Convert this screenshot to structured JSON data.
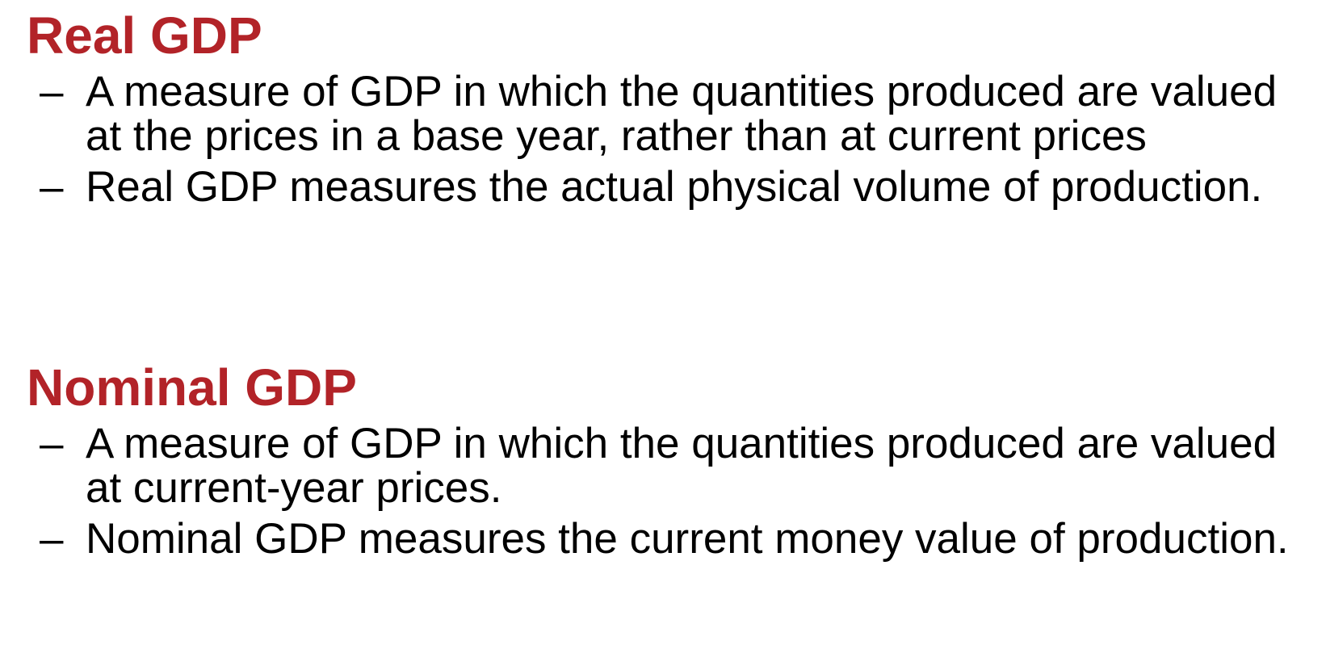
{
  "sections": [
    {
      "heading": "Real GDP",
      "bullets": [
        {
          "marker": "–",
          "text": "A measure of GDP in which the quantities produced are valued at the prices in a base year, rather than at current prices"
        },
        {
          "marker": "–",
          "text": "Real GDP measures the actual physical volume of production."
        }
      ]
    },
    {
      "heading": "Nominal GDP",
      "bullets": [
        {
          "marker": "–",
          "text": "A measure of GDP in which the quantities produced are valued at current-year prices."
        },
        {
          "marker": "–",
          "text": "Nominal GDP measures the current money value of production."
        }
      ]
    }
  ],
  "colors": {
    "heading": "#b22328",
    "body": "#000000",
    "background": "#ffffff"
  }
}
